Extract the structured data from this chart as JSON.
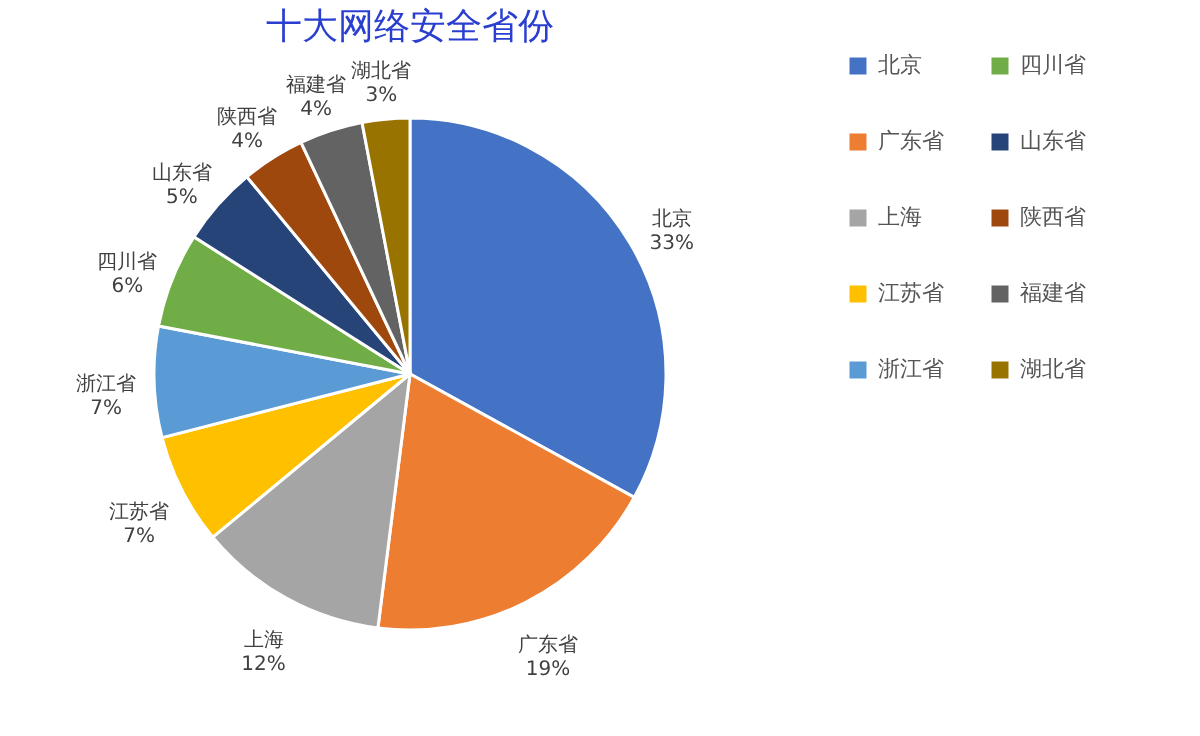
{
  "chart_data": {
    "type": "pie",
    "title": "十大网络安全省份",
    "categories": [
      "北京",
      "广东省",
      "上海",
      "江苏省",
      "浙江省",
      "四川省",
      "山东省",
      "陕西省",
      "福建省",
      "湖北省"
    ],
    "values": [
      33,
      19,
      12,
      7,
      7,
      6,
      5,
      4,
      4,
      3
    ],
    "value_labels": [
      "33%",
      "19%",
      "12%",
      "7%",
      "7%",
      "6%",
      "5%",
      "4%",
      "4%",
      "3%"
    ],
    "colors": [
      "#4472c4",
      "#ed7d31",
      "#a5a5a5",
      "#ffc000",
      "#5b9bd5",
      "#70ad47",
      "#264478",
      "#9e480e",
      "#636363",
      "#997300"
    ],
    "legend": "right"
  }
}
